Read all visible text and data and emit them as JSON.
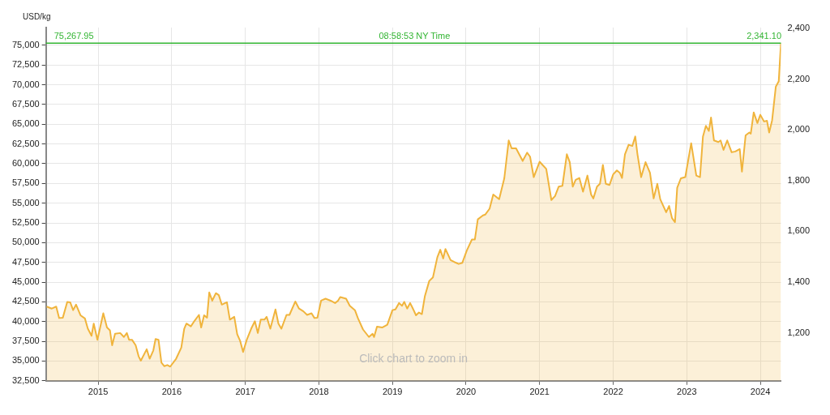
{
  "chart_data": {
    "type": "area",
    "ylabel": "USD/kg",
    "x": [
      2014.3,
      2014.37,
      2014.43,
      2014.47,
      2014.52,
      2014.58,
      2014.62,
      2014.66,
      2014.7,
      2014.76,
      2014.82,
      2014.86,
      2014.91,
      2014.94,
      2014.99,
      2015.07,
      2015.12,
      2015.16,
      2015.19,
      2015.23,
      2015.3,
      2015.35,
      2015.39,
      2015.42,
      2015.46,
      2015.51,
      2015.55,
      2015.58,
      2015.66,
      2015.7,
      2015.75,
      2015.78,
      2015.82,
      2015.86,
      2015.9,
      2015.94,
      2015.98,
      2016.06,
      2016.13,
      2016.17,
      2016.2,
      2016.26,
      2016.31,
      2016.37,
      2016.4,
      2016.44,
      2016.48,
      2016.51,
      2016.55,
      2016.6,
      2016.64,
      2016.68,
      2016.75,
      2016.79,
      2016.85,
      2016.89,
      2016.93,
      2016.97,
      2017.02,
      2017.08,
      2017.13,
      2017.17,
      2017.21,
      2017.26,
      2017.29,
      2017.34,
      2017.41,
      2017.45,
      2017.49,
      2017.56,
      2017.6,
      2017.68,
      2017.73,
      2017.79,
      2017.84,
      2017.9,
      2017.94,
      2017.98,
      2018.03,
      2018.09,
      2018.16,
      2018.22,
      2018.26,
      2018.29,
      2018.37,
      2018.42,
      2018.49,
      2018.53,
      2018.6,
      2018.68,
      2018.73,
      2018.75,
      2018.79,
      2018.86,
      2018.93,
      2019.0,
      2019.04,
      2019.09,
      2019.13,
      2019.16,
      2019.2,
      2019.24,
      2019.27,
      2019.32,
      2019.36,
      2019.4,
      2019.44,
      2019.5,
      2019.55,
      2019.61,
      2019.65,
      2019.69,
      2019.72,
      2019.79,
      2019.84,
      2019.9,
      2019.95,
      2020.01,
      2020.08,
      2020.12,
      2020.16,
      2020.23,
      2020.26,
      2020.32,
      2020.37,
      2020.45,
      2020.52,
      2020.58,
      2020.62,
      2020.68,
      2020.77,
      2020.83,
      2020.87,
      2020.92,
      2021.0,
      2021.04,
      2021.09,
      2021.16,
      2021.21,
      2021.26,
      2021.31,
      2021.37,
      2021.41,
      2021.45,
      2021.49,
      2021.54,
      2021.59,
      2021.65,
      2021.7,
      2021.73,
      2021.78,
      2021.82,
      2021.86,
      2021.9,
      2021.95,
      2022.0,
      2022.05,
      2022.09,
      2022.12,
      2022.16,
      2022.21,
      2022.26,
      2022.3,
      2022.33,
      2022.38,
      2022.44,
      2022.5,
      2022.55,
      2022.6,
      2022.64,
      2022.72,
      2022.76,
      2022.8,
      2022.84,
      2022.87,
      2022.92,
      2022.98,
      2023.06,
      2023.13,
      2023.18,
      2023.22,
      2023.26,
      2023.3,
      2023.33,
      2023.37,
      2023.43,
      2023.46,
      2023.5,
      2023.55,
      2023.61,
      2023.66,
      2023.72,
      2023.75,
      2023.8,
      2023.85,
      2023.87,
      2023.91,
      2023.96,
      2024.0,
      2024.05,
      2024.09,
      2024.12,
      2024.16,
      2024.21,
      2024.25,
      2024.28
    ],
    "values": [
      41900,
      41650,
      41900,
      40450,
      40500,
      42500,
      42450,
      41450,
      42150,
      40800,
      40400,
      39100,
      38200,
      39750,
      37700,
      41050,
      39250,
      38900,
      37000,
      38450,
      38550,
      38050,
      38550,
      37700,
      37700,
      37000,
      35600,
      35050,
      36500,
      35300,
      36350,
      37800,
      37700,
      34800,
      34350,
      34500,
      34300,
      35300,
      36700,
      39100,
      39750,
      39400,
      40100,
      40850,
      39250,
      40800,
      40500,
      43700,
      42650,
      43600,
      43350,
      42150,
      42450,
      40250,
      40600,
      38400,
      37550,
      36150,
      37700,
      39100,
      40050,
      38550,
      40250,
      40250,
      40600,
      39100,
      41550,
      39750,
      39100,
      40850,
      40850,
      42550,
      41650,
      41300,
      40850,
      41050,
      40450,
      40500,
      42650,
      42900,
      42650,
      42350,
      42650,
      43100,
      42900,
      42000,
      41450,
      40450,
      39000,
      38050,
      38450,
      38050,
      39350,
      39250,
      39600,
      41450,
      41550,
      42350,
      42000,
      42500,
      41650,
      42350,
      41800,
      40800,
      41150,
      40950,
      43200,
      45150,
      45600,
      48150,
      49100,
      48000,
      49200,
      47800,
      47550,
      47300,
      47450,
      49000,
      50400,
      50400,
      52950,
      53450,
      53550,
      54300,
      56100,
      55500,
      58150,
      62950,
      61950,
      61950,
      60350,
      61400,
      60900,
      58300,
      60250,
      59850,
      59350,
      55400,
      55900,
      57100,
      57200,
      61200,
      60200,
      57100,
      57950,
      58200,
      56450,
      58500,
      56100,
      55600,
      57100,
      57450,
      59850,
      57450,
      57300,
      58650,
      59150,
      58850,
      58200,
      61200,
      62400,
      62250,
      63450,
      61200,
      58300,
      60200,
      58850,
      55600,
      57450,
      55500,
      53850,
      54650,
      53100,
      52600,
      56950,
      58150,
      58300,
      62600,
      58500,
      58300,
      63450,
      64800,
      64150,
      65850,
      62950,
      62750,
      62950,
      61750,
      62950,
      61450,
      61550,
      61850,
      59000,
      63600,
      63950,
      63800,
      66500,
      65150,
      66200,
      65350,
      65450,
      63950,
      65500,
      69750,
      70450,
      75267.95
    ],
    "color": "#f0b43c",
    "xlim": [
      2014.29,
      2024.28
    ],
    "xticks": [
      2015,
      2016,
      2017,
      2018,
      2019,
      2020,
      2021,
      2022,
      2023,
      2024
    ],
    "ylim": [
      32500,
      77250
    ],
    "yticks": [
      {
        "value": 32500,
        "label": "32,500"
      },
      {
        "value": 35000,
        "label": "35,000"
      },
      {
        "value": 37500,
        "label": "37,500"
      },
      {
        "value": 40000,
        "label": "40,000"
      },
      {
        "value": 42500,
        "label": "42,500"
      },
      {
        "value": 45000,
        "label": "45,000"
      },
      {
        "value": 47500,
        "label": "47,500"
      },
      {
        "value": 50000,
        "label": "50,000"
      },
      {
        "value": 52500,
        "label": "52,500"
      },
      {
        "value": 55000,
        "label": "55,000"
      },
      {
        "value": 57500,
        "label": "57,500"
      },
      {
        "value": 60000,
        "label": "60,000"
      },
      {
        "value": 62500,
        "label": "62,500"
      },
      {
        "value": 65000,
        "label": "65,000"
      },
      {
        "value": 67500,
        "label": "67,500"
      },
      {
        "value": 70000,
        "label": "70,000"
      },
      {
        "value": 72500,
        "label": "72,500"
      },
      {
        "value": 75000,
        "label": "75,000"
      }
    ],
    "y2lim": [
      1010.9,
      2403
    ],
    "y2ticks": [
      {
        "value": 1200,
        "label": "1,200"
      },
      {
        "value": 1400,
        "label": "1,400"
      },
      {
        "value": 1600,
        "label": "1,600"
      },
      {
        "value": 1800,
        "label": "1,800"
      },
      {
        "value": 2000,
        "label": "2,000"
      },
      {
        "value": 2200,
        "label": "2,200"
      },
      {
        "value": 2400,
        "label": "2,400"
      }
    ],
    "ref_lines": [
      {
        "axis": "y",
        "value": 75267.95,
        "label": "75,267.95",
        "color": "#33b533"
      }
    ],
    "annotations": [
      {
        "text": "08:58:53 NY Time",
        "x": 2019.3,
        "y": 75267.95
      },
      {
        "text": "2,341.10",
        "x": 2024.05,
        "y": 75267.95
      },
      "Click chart to zoom in"
    ],
    "grid": true,
    "legend": false
  }
}
